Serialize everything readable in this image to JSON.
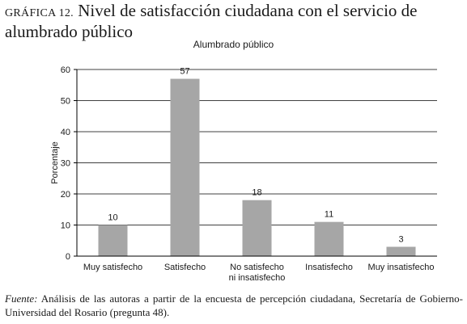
{
  "figure": {
    "label": "GRÁFICA 12.",
    "title": "Nivel de satisfacción ciudadana con el servicio de alumbrado público"
  },
  "chart_data": {
    "type": "bar",
    "title": "Alumbrado público",
    "xlabel": "",
    "ylabel": "Porcentaje",
    "categories": [
      [
        "Muy satisfecho"
      ],
      [
        "Satisfecho"
      ],
      [
        "No satisfecho",
        "ni insatisfecho"
      ],
      [
        "Insatisfecho"
      ],
      [
        "Muy insatisfecho"
      ]
    ],
    "values": [
      10,
      57,
      18,
      11,
      3
    ],
    "data_labels": [
      "10",
      "57",
      "18",
      "11",
      "3"
    ],
    "ylim": [
      0,
      60
    ],
    "yticks": [
      0,
      10,
      20,
      30,
      40,
      50,
      60
    ],
    "grid": true,
    "legend": "none",
    "colors": {
      "bar": "#a6a6a6",
      "grid": "#000000",
      "axis": "#000000",
      "text": "#1a1a1a"
    }
  },
  "source_note": {
    "label": "Fuente:",
    "text": "Análisis de las autoras a partir de la encuesta de percepción ciudadana, Secretaría de Gobierno- Universidad del Rosario (pregunta 48)."
  }
}
